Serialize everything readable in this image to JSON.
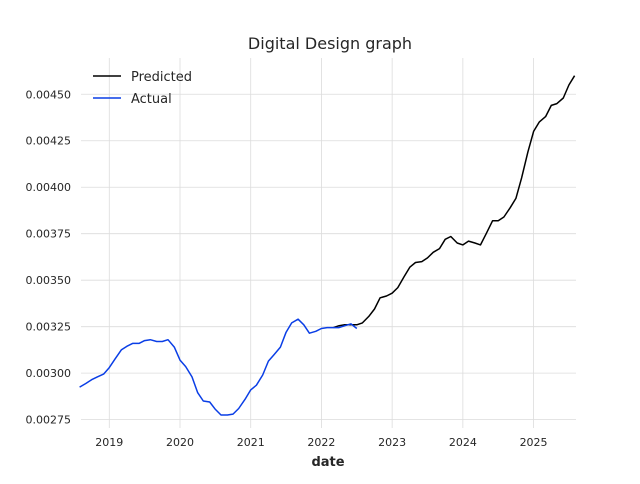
{
  "chart_data": {
    "type": "line",
    "title": "Digital Design graph",
    "xlabel": "date",
    "ylabel": "",
    "xlim": [
      2018.6,
      2025.6
    ],
    "ylim": [
      0.002705,
      0.004695
    ],
    "grid": true,
    "legend_position": "top-left",
    "x_ticks": [
      {
        "value": 2019,
        "label": "2019"
      },
      {
        "value": 2020,
        "label": "2020"
      },
      {
        "value": 2021,
        "label": "2021"
      },
      {
        "value": 2022,
        "label": "2022"
      },
      {
        "value": 2023,
        "label": "2023"
      },
      {
        "value": 2024,
        "label": "2024"
      },
      {
        "value": 2025,
        "label": "2025"
      }
    ],
    "y_ticks": [
      {
        "value": 0.00275,
        "label": "0.00275"
      },
      {
        "value": 0.003,
        "label": "0.00300"
      },
      {
        "value": 0.00325,
        "label": "0.00325"
      },
      {
        "value": 0.0035,
        "label": "0.00350"
      },
      {
        "value": 0.00375,
        "label": "0.00375"
      },
      {
        "value": 0.004,
        "label": "0.00400"
      },
      {
        "value": 0.00425,
        "label": "0.00425"
      },
      {
        "value": 0.0045,
        "label": "0.00450"
      }
    ],
    "series": [
      {
        "name": "Predicted",
        "color": "#000000",
        "points": [
          [
            2022.17,
            0.003245
          ],
          [
            2022.25,
            0.003255
          ],
          [
            2022.33,
            0.00326
          ],
          [
            2022.42,
            0.00326
          ],
          [
            2022.5,
            0.00326
          ],
          [
            2022.58,
            0.00327
          ],
          [
            2022.67,
            0.003305
          ],
          [
            2022.75,
            0.003345
          ],
          [
            2022.83,
            0.003405
          ],
          [
            2022.92,
            0.003415
          ],
          [
            2023.0,
            0.00343
          ],
          [
            2023.08,
            0.00346
          ],
          [
            2023.17,
            0.00352
          ],
          [
            2023.25,
            0.00357
          ],
          [
            2023.33,
            0.003595
          ],
          [
            2023.42,
            0.0036
          ],
          [
            2023.5,
            0.00362
          ],
          [
            2023.58,
            0.00365
          ],
          [
            2023.67,
            0.00367
          ],
          [
            2023.75,
            0.00372
          ],
          [
            2023.83,
            0.003735
          ],
          [
            2023.92,
            0.0037
          ],
          [
            2024.0,
            0.00369
          ],
          [
            2024.08,
            0.00371
          ],
          [
            2024.17,
            0.0037
          ],
          [
            2024.25,
            0.00369
          ],
          [
            2024.33,
            0.00375
          ],
          [
            2024.42,
            0.00382
          ],
          [
            2024.5,
            0.00382
          ],
          [
            2024.58,
            0.00384
          ],
          [
            2024.67,
            0.00389
          ],
          [
            2024.75,
            0.00394
          ],
          [
            2024.83,
            0.00405
          ],
          [
            2024.92,
            0.00419
          ],
          [
            2025.0,
            0.0043
          ],
          [
            2025.08,
            0.00435
          ],
          [
            2025.17,
            0.00438
          ],
          [
            2025.25,
            0.00444
          ],
          [
            2025.33,
            0.00445
          ],
          [
            2025.42,
            0.00448
          ],
          [
            2025.5,
            0.00455
          ],
          [
            2025.58,
            0.0046
          ]
        ]
      },
      {
        "name": "Actual",
        "color": "#0a3ee6",
        "points": [
          [
            2018.58,
            0.002925
          ],
          [
            2018.67,
            0.002945
          ],
          [
            2018.75,
            0.002965
          ],
          [
            2018.83,
            0.00298
          ],
          [
            2018.92,
            0.002995
          ],
          [
            2019.0,
            0.00303
          ],
          [
            2019.08,
            0.003075
          ],
          [
            2019.17,
            0.003125
          ],
          [
            2019.25,
            0.003145
          ],
          [
            2019.33,
            0.00316
          ],
          [
            2019.42,
            0.00316
          ],
          [
            2019.5,
            0.003175
          ],
          [
            2019.58,
            0.00318
          ],
          [
            2019.67,
            0.00317
          ],
          [
            2019.75,
            0.00317
          ],
          [
            2019.83,
            0.00318
          ],
          [
            2019.92,
            0.00314
          ],
          [
            2020.0,
            0.00307
          ],
          [
            2020.08,
            0.003035
          ],
          [
            2020.17,
            0.00298
          ],
          [
            2020.25,
            0.002895
          ],
          [
            2020.33,
            0.00285
          ],
          [
            2020.42,
            0.002845
          ],
          [
            2020.5,
            0.002805
          ],
          [
            2020.58,
            0.002775
          ],
          [
            2020.67,
            0.002775
          ],
          [
            2020.75,
            0.00278
          ],
          [
            2020.83,
            0.00281
          ],
          [
            2020.92,
            0.00286
          ],
          [
            2021.0,
            0.00291
          ],
          [
            2021.08,
            0.002935
          ],
          [
            2021.17,
            0.00299
          ],
          [
            2021.25,
            0.003065
          ],
          [
            2021.33,
            0.0031
          ],
          [
            2021.42,
            0.00314
          ],
          [
            2021.5,
            0.00322
          ],
          [
            2021.58,
            0.00327
          ],
          [
            2021.67,
            0.00329
          ],
          [
            2021.75,
            0.00326
          ],
          [
            2021.83,
            0.003215
          ],
          [
            2021.92,
            0.003225
          ],
          [
            2022.0,
            0.00324
          ],
          [
            2022.08,
            0.003245
          ],
          [
            2022.17,
            0.003245
          ],
          [
            2022.25,
            0.003245
          ],
          [
            2022.33,
            0.003255
          ],
          [
            2022.42,
            0.003265
          ],
          [
            2022.5,
            0.00324
          ]
        ]
      }
    ]
  }
}
